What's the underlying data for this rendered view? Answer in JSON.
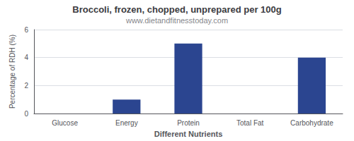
{
  "chart_data": {
    "type": "bar",
    "title": "Broccoli, frozen, chopped, unprepared per 100g",
    "subtitle": "www.dietandfitnesstoday.com",
    "xlabel": "Different Nutrients",
    "ylabel": "Percentage of RDH (%)",
    "categories": [
      "Glucose",
      "Energy",
      "Protein",
      "Total Fat",
      "Carbohydrate"
    ],
    "values": [
      0,
      1.0,
      5.0,
      0,
      4.0
    ],
    "color": "#2b4590",
    "ylim": [
      0,
      6
    ],
    "yticks": [
      0,
      2,
      4,
      6
    ],
    "grid": true
  }
}
